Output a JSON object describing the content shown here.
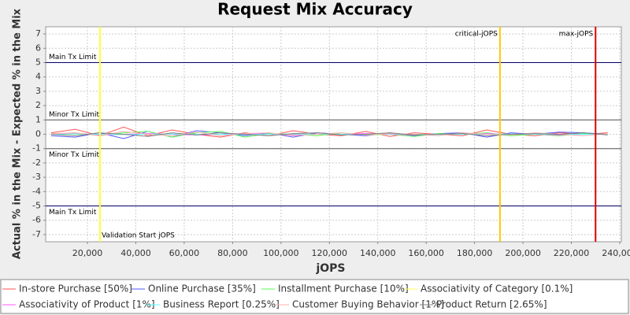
{
  "chart_data": {
    "type": "line",
    "title": "Request Mix Accuracy",
    "xlabel": "jOPS",
    "ylabel": "Actual % in the Mix - Expected % in the Mix",
    "x": [
      5000,
      15000,
      25000,
      35000,
      45000,
      55000,
      65000,
      75000,
      85000,
      95000,
      105000,
      115000,
      125000,
      135000,
      145000,
      155000,
      165000,
      175000,
      185000,
      195000,
      205000,
      215000,
      225000,
      235000
    ],
    "series": [
      {
        "name": "In-store Purchase [50%]",
        "color": "#ff5555",
        "values": [
          0.1,
          0.35,
          -0.1,
          0.5,
          -0.1,
          0.3,
          0,
          -0.2,
          0.1,
          -0.1,
          0.25,
          0,
          -0.1,
          0.2,
          -0.15,
          0.1,
          0,
          -0.1,
          0.3,
          0,
          -0.1,
          0.1,
          0,
          0.1
        ]
      },
      {
        "name": "Online Purchase [35%]",
        "color": "#5555ff",
        "values": [
          -0.1,
          -0.2,
          0.1,
          -0.3,
          0.2,
          -0.2,
          0.25,
          0.1,
          -0.1,
          0.1,
          -0.2,
          0.1,
          0,
          -0.1,
          0.1,
          -0.1,
          0.05,
          0.1,
          -0.2,
          0.1,
          0,
          0.15,
          0.1,
          0
        ]
      },
      {
        "name": "Installment Purchase [10%]",
        "color": "#55ff55",
        "values": [
          0,
          0.1,
          -0.1,
          0.1,
          0.2,
          -0.2,
          0.1,
          0.2,
          -0.2,
          0.05,
          0,
          -0.1,
          0.1,
          -0.05,
          0,
          -0.15,
          0.05,
          0,
          0.1,
          -0.1,
          0,
          -0.1,
          0.05,
          0
        ]
      },
      {
        "name": "Associativity of Category [0.1%]",
        "color": "#ffff55",
        "values": [
          0,
          0,
          0,
          0,
          0,
          0,
          0,
          0,
          0,
          0,
          0,
          0,
          0,
          0,
          0,
          0,
          0,
          0,
          0,
          0,
          0,
          0,
          0,
          0
        ]
      },
      {
        "name": "Associativity of Product [1%]",
        "color": "#ff55ff",
        "values": [
          0,
          0.05,
          -0.05,
          0,
          0.05,
          0,
          -0.05,
          0,
          0.05,
          0,
          -0.05,
          0,
          0,
          0.05,
          0,
          -0.05,
          0,
          0,
          0.05,
          0,
          0,
          -0.05,
          0,
          0
        ]
      },
      {
        "name": "Business Report [0.25%]",
        "color": "#55ffff",
        "values": [
          0,
          0.02,
          0,
          -0.02,
          0,
          0.02,
          0,
          0,
          -0.02,
          0,
          0.02,
          0,
          0,
          0,
          0.02,
          0,
          -0.02,
          0,
          0,
          0.02,
          0,
          0,
          0,
          0
        ]
      },
      {
        "name": "Customer Buying Behavior [1%]",
        "color": "#ffafaf",
        "values": [
          0.05,
          0.1,
          -0.1,
          0.2,
          0,
          -0.1,
          0.15,
          -0.1,
          0.05,
          0.1,
          -0.1,
          0,
          0.1,
          -0.05,
          0.05,
          0,
          -0.1,
          0.1,
          0,
          -0.05,
          0.1,
          0,
          -0.1,
          0.05
        ]
      },
      {
        "name": "Product Return [2.65%]",
        "color": "#808080",
        "values": [
          0,
          -0.1,
          0.1,
          0,
          -0.15,
          0.1,
          -0.05,
          0.1,
          0,
          -0.1,
          0.05,
          0.1,
          -0.05,
          0,
          0.1,
          -0.05,
          0,
          0.05,
          -0.1,
          0,
          0.05,
          0,
          0.1,
          -0.05
        ]
      }
    ],
    "xlim": [
      2750,
      240650
    ],
    "ylim": [
      -7.5,
      7.5
    ],
    "xticks": [
      {
        "value": 20000,
        "label": "20,000"
      },
      {
        "value": 40000,
        "label": "40,000"
      },
      {
        "value": 60000,
        "label": "60,000"
      },
      {
        "value": 80000,
        "label": "80,000"
      },
      {
        "value": 100000,
        "label": "100,000"
      },
      {
        "value": 120000,
        "label": "120,000"
      },
      {
        "value": 140000,
        "label": "140,000"
      },
      {
        "value": 160000,
        "label": "160,000"
      },
      {
        "value": 180000,
        "label": "180,000"
      },
      {
        "value": 200000,
        "label": "200,000"
      },
      {
        "value": 220000,
        "label": "220,000"
      },
      {
        "value": 240000,
        "label": "240,000"
      }
    ],
    "yticks": [
      -7,
      -6,
      -5,
      -4,
      -3,
      -2,
      -1,
      0,
      1,
      2,
      3,
      4,
      5,
      6,
      7
    ],
    "grid": true,
    "hlines": [
      {
        "value": 5,
        "label": "Main Tx Limit",
        "color": "#000066"
      },
      {
        "value": 1,
        "label": "Minor Tx Limit",
        "color": "#555555"
      },
      {
        "value": -1,
        "label": "Minor Tx Limit",
        "color": "#555555"
      },
      {
        "value": -5,
        "label": "Main Tx Limit",
        "color": "#000066"
      }
    ],
    "vlines": [
      {
        "value": 25200,
        "label": "Validation Start jOPS",
        "color": "#ffff33"
      },
      {
        "value": 190500,
        "label": "critical-jOPS",
        "color": "#ffc800"
      },
      {
        "value": 230000,
        "label": "max-jOPS",
        "color": "#dd0000"
      }
    ]
  }
}
